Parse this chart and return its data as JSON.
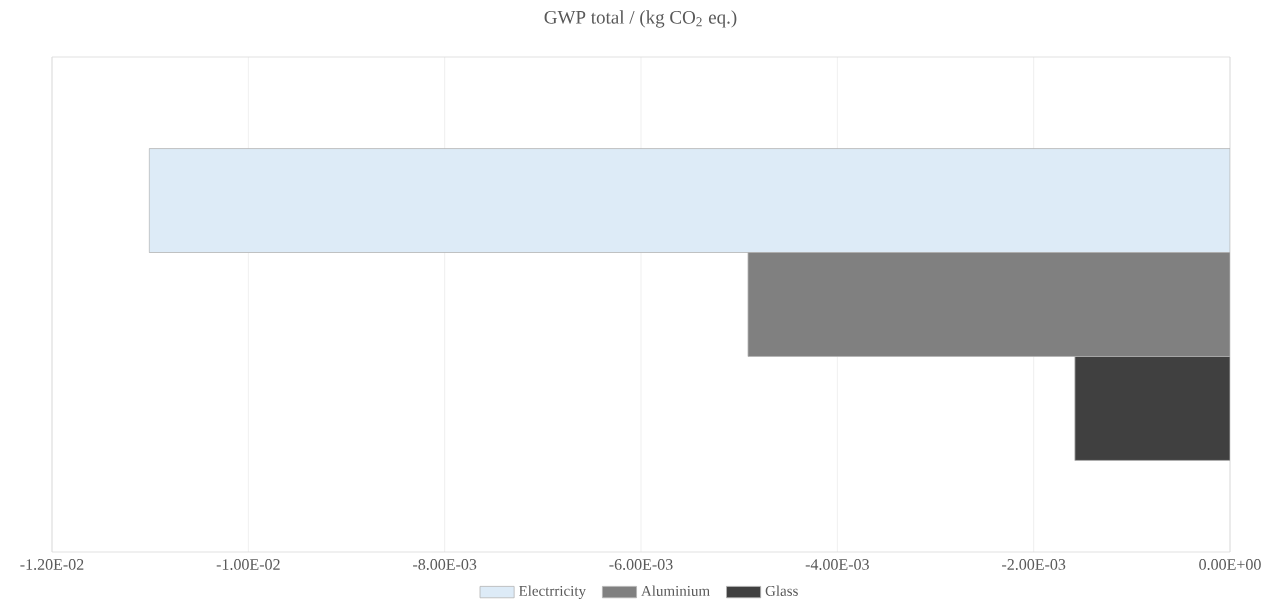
{
  "chart_data": {
    "type": "bar",
    "orientation": "horizontal",
    "title": "GWP total / (kg CO$_{2}$ eq.)",
    "categories": [
      null
    ],
    "series": [
      {
        "name": "Electrricity",
        "color": "#ddebf7",
        "values": [
          -0.01101
        ]
      },
      {
        "name": "Aluminium",
        "color": "#808080",
        "values": [
          -0.00491
        ]
      },
      {
        "name": "Glass",
        "color": "#404040",
        "values": [
          -0.00158
        ]
      }
    ],
    "xlim": [
      -0.012,
      0
    ],
    "xticks": [
      {
        "value": -0.012,
        "label": "-1.20E-02"
      },
      {
        "value": -0.01,
        "label": "-1.00E-02"
      },
      {
        "value": -0.008,
        "label": "-8.00E-03"
      },
      {
        "value": -0.006,
        "label": "-6.00E-03"
      },
      {
        "value": -0.004,
        "label": "-4.00E-03"
      },
      {
        "value": -0.002,
        "label": "-2.00E-03"
      },
      {
        "value": 0,
        "label": "0.00E+00"
      }
    ],
    "grid": "x",
    "legend": "bottom",
    "tick_labels": "x"
  }
}
